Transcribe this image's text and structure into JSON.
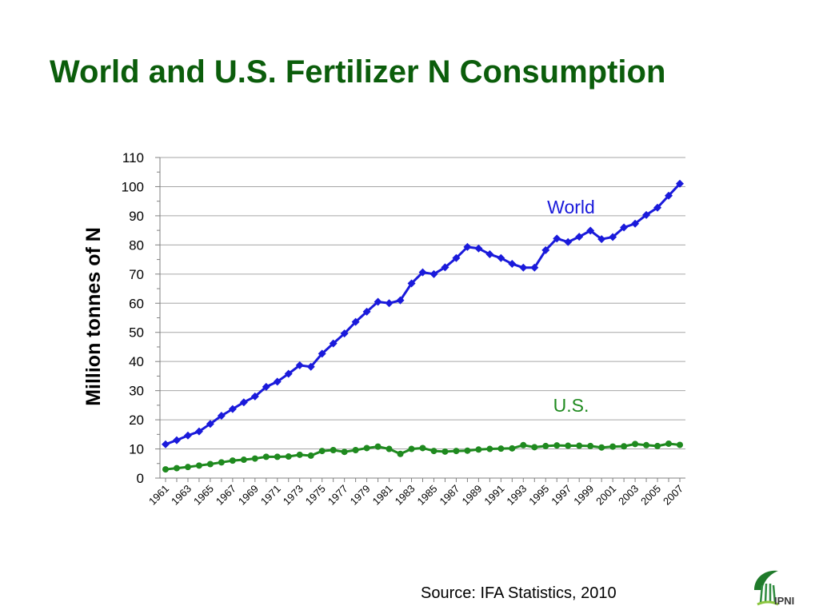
{
  "slide": {
    "title": "World and U.S. Fertilizer N Consumption",
    "source": "Source: IFA Statistics, 2010",
    "logo_text": "IPNI"
  },
  "colors": {
    "title": "#0b5d0b",
    "world": "#1a1adb",
    "us": "#1f8a1f",
    "grid": "#a6a6a6"
  },
  "chart_data": {
    "type": "line",
    "ylabel": "Million tonnes of N",
    "xlabel": "",
    "ylim": [
      0,
      110
    ],
    "ytick_step": 10,
    "grid": "horizontal",
    "x": [
      1961,
      1962,
      1963,
      1964,
      1965,
      1966,
      1967,
      1968,
      1969,
      1970,
      1971,
      1972,
      1973,
      1974,
      1975,
      1976,
      1977,
      1978,
      1979,
      1980,
      1981,
      1982,
      1983,
      1984,
      1985,
      1986,
      1987,
      1988,
      1989,
      1990,
      1991,
      1992,
      1993,
      1994,
      1995,
      1996,
      1997,
      1998,
      1999,
      2000,
      2001,
      2002,
      2003,
      2004,
      2005,
      2006,
      2007
    ],
    "xtick_labels": [
      "1961",
      "1963",
      "1965",
      "1967",
      "1969",
      "1971",
      "1973",
      "1975",
      "1977",
      "1979",
      "1981",
      "1983",
      "1985",
      "1987",
      "1989",
      "1991",
      "1993",
      "1995",
      "1997",
      "1999",
      "2001",
      "2003",
      "2005",
      "2007"
    ],
    "series": [
      {
        "name": "World",
        "marker": "diamond",
        "values": [
          11.6,
          13.0,
          14.6,
          16.0,
          18.6,
          21.4,
          23.7,
          26.0,
          28.0,
          31.3,
          33.1,
          35.8,
          38.7,
          38.2,
          42.7,
          46.2,
          49.6,
          53.6,
          57.1,
          60.5,
          60.0,
          61.0,
          66.8,
          70.6,
          70.0,
          72.3,
          75.5,
          79.3,
          78.8,
          76.8,
          75.5,
          73.5,
          72.2,
          72.2,
          78.2,
          82.2,
          81.0,
          82.8,
          84.9,
          82.0,
          82.7,
          86.0,
          87.3,
          90.3,
          92.8,
          96.9,
          101.0
        ]
      },
      {
        "name": "U.S.",
        "marker": "circle",
        "values": [
          3.0,
          3.4,
          3.8,
          4.3,
          4.8,
          5.4,
          6.0,
          6.3,
          6.7,
          7.3,
          7.3,
          7.4,
          8.0,
          7.7,
          9.3,
          9.6,
          9.0,
          9.6,
          10.3,
          10.8,
          10.0,
          8.3,
          10.0,
          10.3,
          9.3,
          9.1,
          9.3,
          9.4,
          9.8,
          10.0,
          10.1,
          10.2,
          11.3,
          10.6,
          11.0,
          11.2,
          11.1,
          11.1,
          11.0,
          10.5,
          10.8,
          10.9,
          11.7,
          11.3,
          11.0,
          11.8,
          11.4
        ]
      }
    ],
    "annotations": [
      {
        "text": "World",
        "series": "World"
      },
      {
        "text": "U.S.",
        "series": "U.S."
      }
    ]
  }
}
